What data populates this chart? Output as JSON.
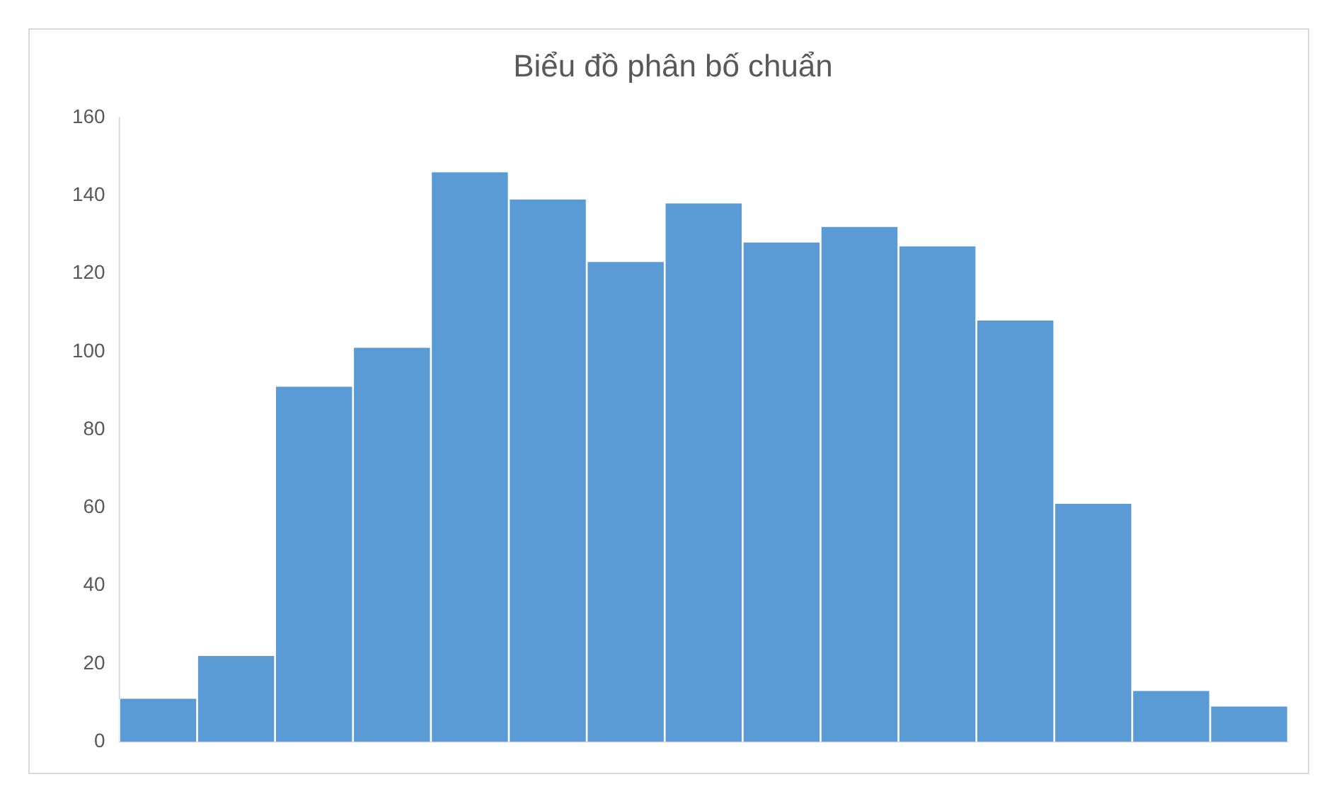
{
  "chart_data": {
    "type": "bar",
    "title": "Biểu đồ phân bố chuẩn",
    "categories": [
      null,
      null,
      null,
      null,
      null,
      null,
      null,
      null,
      null,
      null,
      null,
      null,
      null,
      null,
      null
    ],
    "values": [
      11,
      22,
      91,
      101,
      146,
      139,
      123,
      138,
      128,
      132,
      127,
      108,
      61,
      13,
      9
    ],
    "color": "#5b9bd5",
    "ylim": [
      0,
      160
    ],
    "yticks": [
      0,
      20,
      40,
      60,
      80,
      100,
      120,
      140,
      160
    ]
  }
}
